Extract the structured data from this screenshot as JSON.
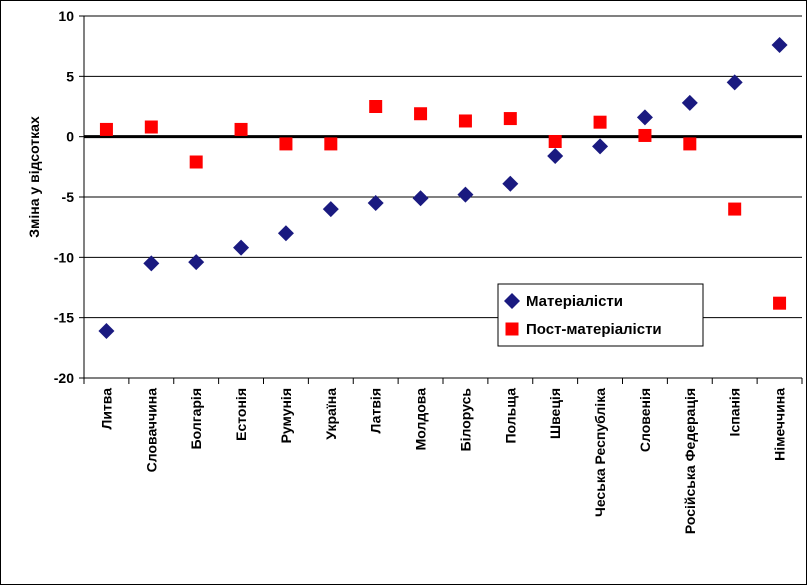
{
  "chart_data": {
    "type": "scatter",
    "title": "",
    "xlabel": "",
    "ylabel": "Зміна у відсотках",
    "ylim": [
      -20,
      10
    ],
    "yticks": [
      -20,
      -15,
      -10,
      -5,
      0,
      5,
      10
    ],
    "grid": true,
    "legend_position": "bottom-right",
    "categories": [
      "Литва",
      "Словаччина",
      "Болгарія",
      "Естонія",
      "Румунія",
      "Україна",
      "Латвія",
      "Молдова",
      "Білорусь",
      "Польща",
      "Швеція",
      "Чеська Республіка",
      "Словенія",
      "Російська Федерація",
      "Іспанія",
      "Німеччина"
    ],
    "series": [
      {
        "name": "Матеріалісти",
        "marker": "diamond",
        "color": "#1a1a80",
        "values": [
          -16.1,
          -10.5,
          -10.4,
          -9.2,
          -8.0,
          -6.0,
          -5.5,
          -5.1,
          -4.8,
          -3.9,
          -1.6,
          -0.8,
          1.6,
          2.8,
          4.5,
          7.6
        ]
      },
      {
        "name": "Пост-матеріалісти",
        "marker": "square",
        "color": "#ff0000",
        "values": [
          0.6,
          0.8,
          -2.1,
          0.6,
          -0.6,
          -0.6,
          2.5,
          1.9,
          1.3,
          1.5,
          -0.4,
          1.2,
          0.1,
          -0.6,
          -6.0,
          -13.8
        ]
      }
    ]
  }
}
